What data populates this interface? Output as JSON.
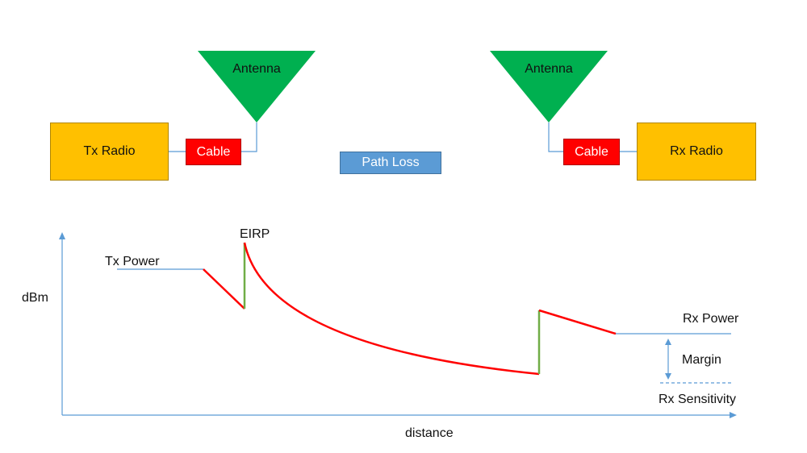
{
  "tx": {
    "radio_label": "Tx Radio",
    "cable_label": "Cable",
    "antenna_label": "Antenna"
  },
  "rx": {
    "radio_label": "Rx Radio",
    "cable_label": "Cable",
    "antenna_label": "Antenna"
  },
  "path_loss_label": "Path Loss",
  "graph": {
    "y_axis_label": "dBm",
    "x_axis_label": "distance",
    "tx_power_label": "Tx Power",
    "eirp_label": "EIRP",
    "rx_power_label": "Rx Power",
    "margin_label": "Margin",
    "rx_sensitivity_label": "Rx Sensitivity"
  },
  "colors": {
    "radio": "#ffc000",
    "cable": "#ff0000",
    "antenna": "#00b050",
    "path_loss": "#5b9bd5",
    "loss_curve": "#ff0000",
    "gain_step": "#70ad47",
    "reference_line": "#5b9bd5"
  }
}
